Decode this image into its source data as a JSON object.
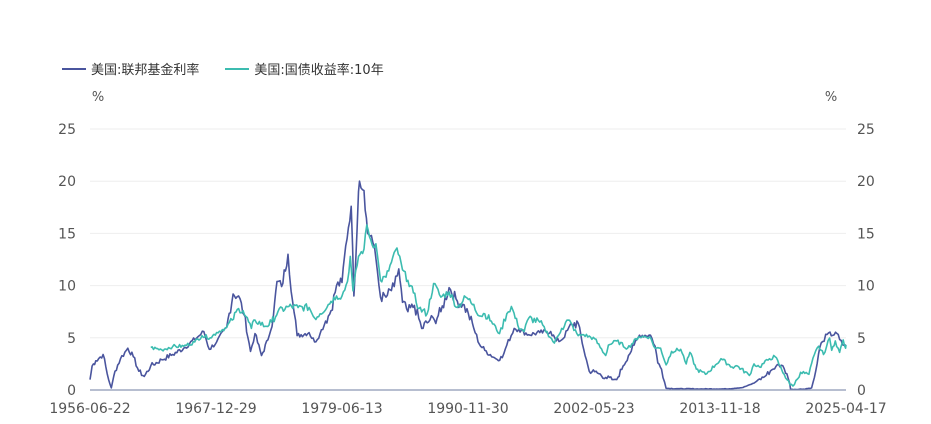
{
  "chart_data": {
    "type": "line",
    "legend_position": "top-left",
    "grid": true,
    "y_unit_left": "%",
    "y_unit_right": "%",
    "ylim": [
      0,
      25
    ],
    "y_ticks": [
      0,
      5,
      10,
      15,
      20,
      25
    ],
    "y_tick_labels": [
      "0",
      "5",
      "10",
      "15",
      "20",
      "25"
    ],
    "xlim": [
      "1956-06-22",
      "2025-04-17"
    ],
    "x_tick_labels": [
      "1956-06-22",
      "1967-12-29",
      "1979-06-13",
      "1990-11-30",
      "2002-05-23",
      "2013-11-18",
      "2025-04-17"
    ],
    "colors": {
      "fed_funds": "#4a559e",
      "treasury_10y": "#3cbcb0",
      "grid": "#eeeeee",
      "axis": "#8c96b4",
      "text": "#555555"
    },
    "series": [
      {
        "name": "美国:联邦基金利率",
        "color": "#4a559e",
        "points": [
          [
            "1956-06-22",
            1.0
          ],
          [
            "1956-09-01",
            2.3
          ],
          [
            "1957-01-01",
            2.8
          ],
          [
            "1957-09-01",
            3.4
          ],
          [
            "1958-03-01",
            1.0
          ],
          [
            "1958-06-01",
            0.2
          ],
          [
            "1958-10-01",
            1.8
          ],
          [
            "1959-04-01",
            3.0
          ],
          [
            "1959-12-01",
            4.0
          ],
          [
            "1960-06-01",
            3.2
          ],
          [
            "1960-12-01",
            1.8
          ],
          [
            "1961-06-01",
            1.3
          ],
          [
            "1962-01-01",
            2.3
          ],
          [
            "1963-01-01",
            2.9
          ],
          [
            "1964-01-01",
            3.4
          ],
          [
            "1965-01-01",
            4.0
          ],
          [
            "1966-06-01",
            5.2
          ],
          [
            "1966-11-01",
            5.6
          ],
          [
            "1967-05-01",
            3.9
          ],
          [
            "1968-01-01",
            4.6
          ],
          [
            "1968-12-01",
            6.0
          ],
          [
            "1969-07-01",
            9.2
          ],
          [
            "1970-01-01",
            9.0
          ],
          [
            "1970-07-01",
            7.2
          ],
          [
            "1971-02-01",
            3.7
          ],
          [
            "1971-07-01",
            5.4
          ],
          [
            "1972-02-01",
            3.3
          ],
          [
            "1972-09-01",
            4.8
          ],
          [
            "1973-03-01",
            7.0
          ],
          [
            "1973-07-01",
            10.4
          ],
          [
            "1973-12-01",
            9.9
          ],
          [
            "1974-07-01",
            13.0
          ],
          [
            "1974-12-01",
            8.5
          ],
          [
            "1975-05-01",
            5.2
          ],
          [
            "1976-06-01",
            5.5
          ],
          [
            "1976-12-01",
            4.6
          ],
          [
            "1977-06-01",
            5.4
          ],
          [
            "1977-12-01",
            6.6
          ],
          [
            "1978-06-01",
            7.6
          ],
          [
            "1978-12-01",
            10.0
          ],
          [
            "1979-06-01",
            10.3
          ],
          [
            "1979-10-01",
            13.8
          ],
          [
            "1980-04-01",
            17.6
          ],
          [
            "1980-07-01",
            9.0
          ],
          [
            "1980-12-01",
            19.0
          ],
          [
            "1981-01-01",
            20.0
          ],
          [
            "1981-06-01",
            19.1
          ],
          [
            "1981-10-01",
            15.0
          ],
          [
            "1982-02-01",
            14.8
          ],
          [
            "1982-07-01",
            12.6
          ],
          [
            "1982-12-01",
            8.9
          ],
          [
            "1983-06-01",
            8.9
          ],
          [
            "1984-03-01",
            9.9
          ],
          [
            "1984-08-01",
            11.6
          ],
          [
            "1984-12-01",
            8.4
          ],
          [
            "1985-06-01",
            7.5
          ],
          [
            "1986-01-01",
            8.1
          ],
          [
            "1986-09-01",
            5.9
          ],
          [
            "1987-06-01",
            6.7
          ],
          [
            "1987-11-01",
            6.7
          ],
          [
            "1988-06-01",
            7.5
          ],
          [
            "1989-03-01",
            9.8
          ],
          [
            "1989-12-01",
            8.5
          ],
          [
            "1990-06-01",
            8.2
          ],
          [
            "1990-12-01",
            7.3
          ],
          [
            "1991-06-01",
            5.9
          ],
          [
            "1991-12-01",
            4.4
          ],
          [
            "1992-06-01",
            3.8
          ],
          [
            "1993-06-01",
            3.0
          ],
          [
            "1994-01-01",
            3.1
          ],
          [
            "1994-06-01",
            4.3
          ],
          [
            "1995-02-01",
            5.9
          ],
          [
            "1995-07-01",
            5.8
          ],
          [
            "1996-06-01",
            5.3
          ],
          [
            "1997-06-01",
            5.5
          ],
          [
            "1998-06-01",
            5.6
          ],
          [
            "1998-12-01",
            4.7
          ],
          [
            "1999-06-01",
            4.8
          ],
          [
            "2000-05-01",
            6.3
          ],
          [
            "2000-12-01",
            6.4
          ],
          [
            "2001-06-01",
            3.9
          ],
          [
            "2001-12-01",
            1.8
          ],
          [
            "2002-06-01",
            1.75
          ],
          [
            "2003-06-01",
            1.2
          ],
          [
            "2004-01-01",
            1.0
          ],
          [
            "2004-06-01",
            1.0
          ],
          [
            "2005-01-01",
            2.3
          ],
          [
            "2005-07-01",
            3.3
          ],
          [
            "2006-01-01",
            4.3
          ],
          [
            "2006-07-01",
            5.25
          ],
          [
            "2007-07-01",
            5.25
          ],
          [
            "2007-12-01",
            4.2
          ],
          [
            "2008-03-01",
            2.6
          ],
          [
            "2008-07-01",
            2.0
          ],
          [
            "2008-12-01",
            0.16
          ],
          [
            "2010-01-01",
            0.12
          ],
          [
            "2012-01-01",
            0.1
          ],
          [
            "2014-06-01",
            0.1
          ],
          [
            "2015-12-01",
            0.24
          ],
          [
            "2016-12-01",
            0.66
          ],
          [
            "2017-06-01",
            1.06
          ],
          [
            "2017-12-01",
            1.3
          ],
          [
            "2018-06-01",
            1.82
          ],
          [
            "2018-12-01",
            2.27
          ],
          [
            "2019-06-01",
            2.38
          ],
          [
            "2019-09-01",
            2.04
          ],
          [
            "2019-12-01",
            1.55
          ],
          [
            "2020-03-01",
            0.65
          ],
          [
            "2020-04-01",
            0.05
          ],
          [
            "2021-06-01",
            0.08
          ],
          [
            "2022-03-01",
            0.2
          ],
          [
            "2022-06-01",
            1.21
          ],
          [
            "2022-09-01",
            2.56
          ],
          [
            "2022-12-01",
            4.1
          ],
          [
            "2023-03-01",
            4.65
          ],
          [
            "2023-08-01",
            5.33
          ],
          [
            "2024-08-01",
            5.33
          ],
          [
            "2024-09-20",
            4.83
          ],
          [
            "2024-12-20",
            4.33
          ],
          [
            "2025-04-17",
            4.33
          ]
        ]
      },
      {
        "name": "美国:国债收益率:10年",
        "color": "#3cbcb0",
        "points": [
          [
            "1962-01-02",
            4.06
          ],
          [
            "1963-01-01",
            3.85
          ],
          [
            "1964-01-01",
            4.17
          ],
          [
            "1965-01-01",
            4.2
          ],
          [
            "1966-01-01",
            4.6
          ],
          [
            "1966-09-01",
            5.2
          ],
          [
            "1967-06-01",
            5.0
          ],
          [
            "1968-01-01",
            5.5
          ],
          [
            "1968-12-01",
            6.0
          ],
          [
            "1969-06-01",
            6.7
          ],
          [
            "1970-01-01",
            7.8
          ],
          [
            "1970-06-01",
            7.6
          ],
          [
            "1971-03-01",
            5.9
          ],
          [
            "1971-07-01",
            6.7
          ],
          [
            "1972-06-01",
            6.1
          ],
          [
            "1973-01-01",
            6.5
          ],
          [
            "1973-08-01",
            7.5
          ],
          [
            "1974-08-01",
            8.0
          ],
          [
            "1975-06-01",
            7.9
          ],
          [
            "1976-06-01",
            7.9
          ],
          [
            "1976-12-01",
            6.9
          ],
          [
            "1977-06-01",
            7.3
          ],
          [
            "1978-06-01",
            8.5
          ],
          [
            "1978-12-01",
            9.0
          ],
          [
            "1979-06-01",
            9.0
          ],
          [
            "1979-12-01",
            10.4
          ],
          [
            "1980-03-01",
            12.8
          ],
          [
            "1980-06-01",
            9.5
          ],
          [
            "1980-12-01",
            12.8
          ],
          [
            "1981-06-01",
            13.5
          ],
          [
            "1981-09-01",
            15.8
          ],
          [
            "1982-03-01",
            13.9
          ],
          [
            "1982-07-01",
            14.0
          ],
          [
            "1982-12-01",
            10.5
          ],
          [
            "1983-06-01",
            10.8
          ],
          [
            "1984-06-01",
            13.6
          ],
          [
            "1984-12-01",
            11.5
          ],
          [
            "1985-06-01",
            10.5
          ],
          [
            "1985-12-01",
            9.3
          ],
          [
            "1986-06-01",
            7.8
          ],
          [
            "1987-03-01",
            7.3
          ],
          [
            "1987-10-01",
            10.2
          ],
          [
            "1988-06-01",
            8.9
          ],
          [
            "1989-03-01",
            9.4
          ],
          [
            "1989-12-01",
            7.9
          ],
          [
            "1990-09-01",
            8.9
          ],
          [
            "1991-06-01",
            8.2
          ],
          [
            "1991-12-01",
            7.1
          ],
          [
            "1992-06-01",
            7.3
          ],
          [
            "1993-01-01",
            6.6
          ],
          [
            "1993-10-01",
            5.4
          ],
          [
            "1994-06-01",
            7.3
          ],
          [
            "1994-11-01",
            8.0
          ],
          [
            "1995-06-01",
            6.2
          ],
          [
            "1996-01-01",
            5.6
          ],
          [
            "1996-06-01",
            6.9
          ],
          [
            "1997-06-01",
            6.5
          ],
          [
            "1998-10-01",
            4.5
          ],
          [
            "1999-06-01",
            5.9
          ],
          [
            "2000-01-01",
            6.7
          ],
          [
            "2000-12-01",
            5.2
          ],
          [
            "2001-06-01",
            5.3
          ],
          [
            "2002-06-01",
            4.9
          ],
          [
            "2003-06-01",
            3.3
          ],
          [
            "2003-09-01",
            4.3
          ],
          [
            "2004-06-01",
            4.7
          ],
          [
            "2005-06-01",
            4.0
          ],
          [
            "2006-06-01",
            5.1
          ],
          [
            "2007-06-01",
            5.1
          ],
          [
            "2007-12-01",
            4.0
          ],
          [
            "2008-06-01",
            4.0
          ],
          [
            "2008-12-01",
            2.4
          ],
          [
            "2009-06-01",
            3.7
          ],
          [
            "2010-04-01",
            3.9
          ],
          [
            "2010-10-01",
            2.5
          ],
          [
            "2011-02-01",
            3.6
          ],
          [
            "2011-09-01",
            2.0
          ],
          [
            "2012-07-01",
            1.5
          ],
          [
            "2013-06-01",
            2.4
          ],
          [
            "2013-12-01",
            3.0
          ],
          [
            "2014-12-01",
            2.2
          ],
          [
            "2015-06-01",
            2.3
          ],
          [
            "2016-07-01",
            1.4
          ],
          [
            "2016-12-01",
            2.5
          ],
          [
            "2017-06-01",
            2.2
          ],
          [
            "2018-05-01",
            3.0
          ],
          [
            "2018-11-01",
            3.2
          ],
          [
            "2019-09-01",
            1.5
          ],
          [
            "2020-03-09",
            0.5
          ],
          [
            "2020-08-04",
            0.52
          ],
          [
            "2021-03-01",
            1.7
          ],
          [
            "2021-12-01",
            1.5
          ],
          [
            "2022-06-01",
            3.4
          ],
          [
            "2022-10-20",
            4.2
          ],
          [
            "2023-04-01",
            3.4
          ],
          [
            "2023-10-19",
            4.98
          ],
          [
            "2023-12-27",
            3.8
          ],
          [
            "2024-04-25",
            4.7
          ],
          [
            "2024-09-16",
            3.6
          ],
          [
            "2025-01-14",
            4.8
          ],
          [
            "2025-04-04",
            4.0
          ],
          [
            "2025-04-17",
            4.33
          ]
        ]
      }
    ]
  }
}
